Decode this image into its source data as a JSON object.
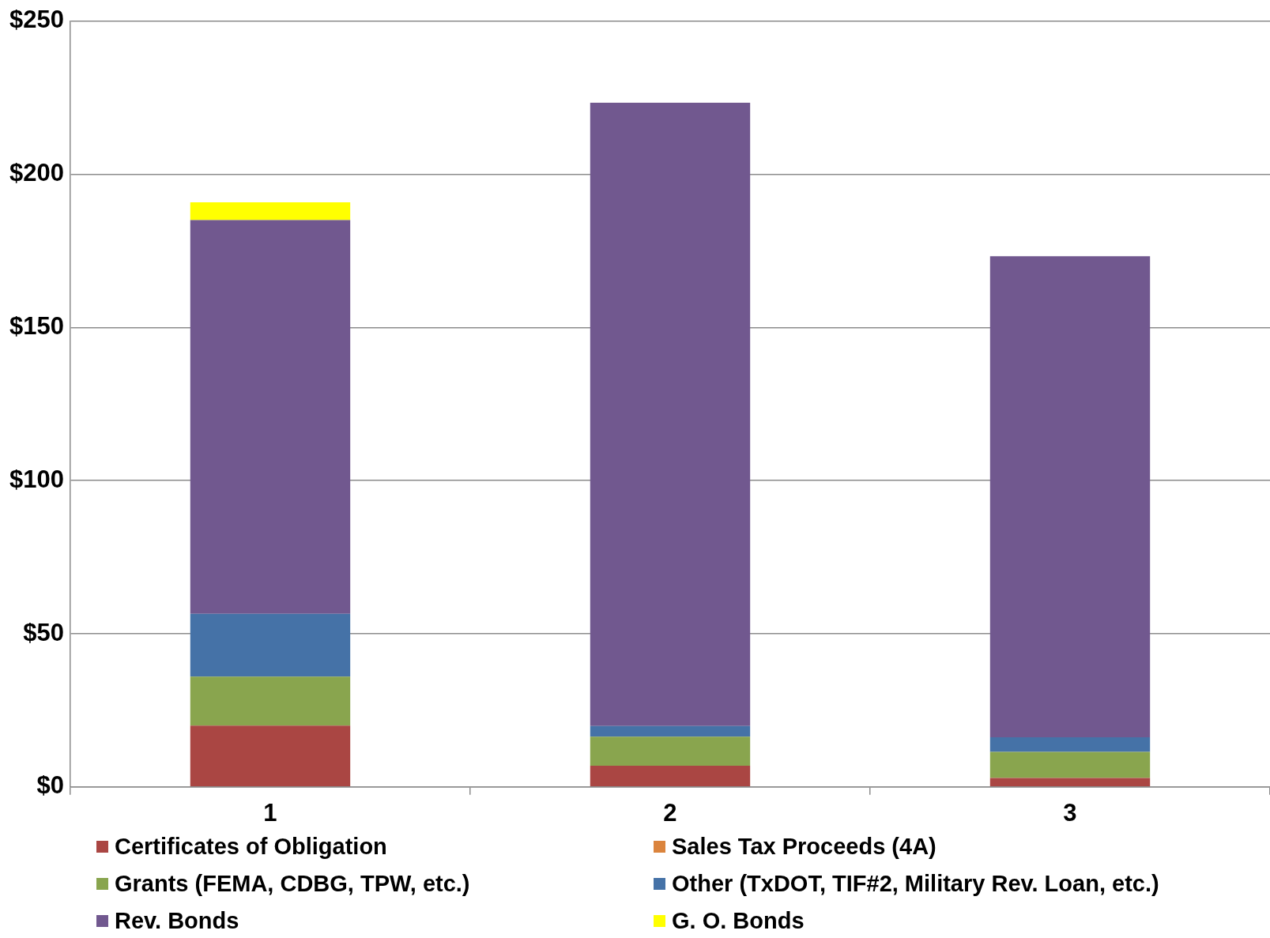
{
  "chart_data": {
    "type": "bar",
    "stacked": true,
    "categories": [
      "1",
      "2",
      "3"
    ],
    "series": [
      {
        "name": "Certificates of Obligation",
        "color": "#aa4643",
        "values": [
          20,
          6.9,
          2.9
        ]
      },
      {
        "name": "Sales Tax Proceeds (4A)",
        "color": "#db843d",
        "values": [
          0,
          0,
          0
        ]
      },
      {
        "name": "Grants (FEMA, CDBG, TPW, etc.)",
        "color": "#89a54e",
        "values": [
          16,
          9.5,
          8.5
        ]
      },
      {
        "name": "Other (TxDOT, TIF#2, Military Rev. Loan, etc.)",
        "color": "#4572a7",
        "values": [
          20.5,
          3.5,
          4.8
        ]
      },
      {
        "name": "Rev. Bonds",
        "color": "#71588f",
        "values": [
          128.5,
          203.4,
          157
        ]
      },
      {
        "name": "G. O. Bonds",
        "color": "#ffff00",
        "values": [
          5.8,
          null,
          null
        ]
      }
    ],
    "ylim": [
      0,
      250
    ],
    "yticks": [
      {
        "value": 0,
        "label": "$0"
      },
      {
        "value": 50,
        "label": "$50"
      },
      {
        "value": 100,
        "label": "$100"
      },
      {
        "value": 150,
        "label": "$150"
      },
      {
        "value": 200,
        "label": "$200"
      },
      {
        "value": 250,
        "label": "$250"
      }
    ],
    "grid": "y",
    "legend": "bottom"
  }
}
